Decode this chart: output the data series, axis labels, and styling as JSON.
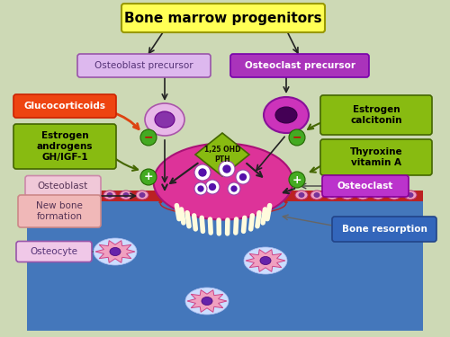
{
  "bg_color": "#cdd9b5",
  "title": "Bone marrow progenitors",
  "title_box_color": "#ffff55",
  "title_box_edge": "#999900",
  "osteoblast_precursor_label": "Osteoblast precursor",
  "osteoclast_precursor_label": "Osteoclast precursor",
  "ob_precursor_box_color": "#ddb8ee",
  "ob_precursor_box_edge": "#9955aa",
  "oc_precursor_box_color": "#aa33bb",
  "oc_precursor_box_edge": "#7700aa",
  "glucocorticoids_label": "Glucocorticoids",
  "glucocorticoids_color": "#ee4411",
  "estrogen_androgens_label": "Estrogen\nandrogens\nGH/IGF-1",
  "estrogen_androgens_color": "#88bb11",
  "estrogen_calcitonin_label": "Estrogen\ncalcitonin",
  "estrogen_calcitonin_color": "#88bb11",
  "thyroxine_label": "Thyroxine\nvitamin A",
  "thyroxine_color": "#88bb11",
  "pth_label": "1,25 OHD\nPTH",
  "osteoblast_label": "Osteoblast",
  "osteoblast_box_color": "#f0c8d8",
  "osteoblast_box_edge": "#cc88aa",
  "new_bone_label": "New bone\nformation",
  "new_bone_box_color": "#f0b8b8",
  "new_bone_box_edge": "#cc8888",
  "osteoclast_label": "Osteoclast",
  "osteoclast_box_color": "#bb33cc",
  "osteoclast_box_edge": "#880099",
  "bone_resorption_label": "Bone resorption",
  "bone_resorption_box_color": "#3366bb",
  "bone_resorption_box_edge": "#224488",
  "osteocyte_label": "Osteocyte",
  "osteocyte_box_color": "#f0c8e8",
  "osteocyte_box_edge": "#9955aa",
  "bone_color": "#4477bb",
  "bone_surface_color": "#bb2222",
  "minus_bg": "#44aa22",
  "plus_bg": "#44aa22",
  "arrow_color": "#222222",
  "gluco_arrow_color": "#dd4411"
}
